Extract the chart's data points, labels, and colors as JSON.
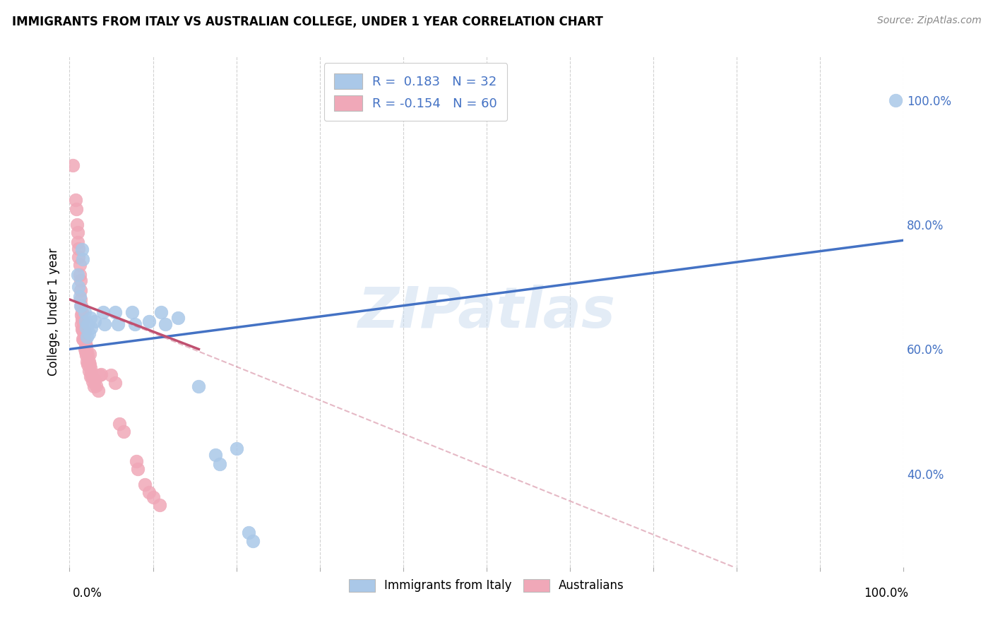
{
  "title": "IMMIGRANTS FROM ITALY VS AUSTRALIAN COLLEGE, UNDER 1 YEAR CORRELATION CHART",
  "source": "Source: ZipAtlas.com",
  "ylabel": "College, Under 1 year",
  "legend_label1": "Immigrants from Italy",
  "legend_label2": "Australians",
  "r1": 0.183,
  "n1": 32,
  "r2": -0.154,
  "n2": 60,
  "blue_color": "#aac8e8",
  "pink_color": "#f0a8b8",
  "line_blue_color": "#4472c4",
  "line_pink_color": "#c05070",
  "blue_scatter": [
    [
      0.01,
      0.72
    ],
    [
      0.011,
      0.7
    ],
    [
      0.012,
      0.685
    ],
    [
      0.013,
      0.67
    ],
    [
      0.015,
      0.76
    ],
    [
      0.016,
      0.745
    ],
    [
      0.018,
      0.66
    ],
    [
      0.019,
      0.645
    ],
    [
      0.02,
      0.635
    ],
    [
      0.021,
      0.62
    ],
    [
      0.022,
      0.64
    ],
    [
      0.023,
      0.625
    ],
    [
      0.025,
      0.65
    ],
    [
      0.026,
      0.635
    ],
    [
      0.03,
      0.645
    ],
    [
      0.04,
      0.66
    ],
    [
      0.042,
      0.64
    ],
    [
      0.055,
      0.66
    ],
    [
      0.058,
      0.64
    ],
    [
      0.075,
      0.66
    ],
    [
      0.078,
      0.64
    ],
    [
      0.095,
      0.645
    ],
    [
      0.11,
      0.66
    ],
    [
      0.115,
      0.64
    ],
    [
      0.13,
      0.65
    ],
    [
      0.155,
      0.54
    ],
    [
      0.175,
      0.43
    ],
    [
      0.18,
      0.415
    ],
    [
      0.2,
      0.44
    ],
    [
      0.215,
      0.305
    ],
    [
      0.22,
      0.292
    ],
    [
      0.99,
      1.0
    ]
  ],
  "pink_scatter": [
    [
      0.004,
      0.895
    ],
    [
      0.007,
      0.84
    ],
    [
      0.008,
      0.825
    ],
    [
      0.009,
      0.8
    ],
    [
      0.01,
      0.788
    ],
    [
      0.01,
      0.772
    ],
    [
      0.011,
      0.762
    ],
    [
      0.011,
      0.748
    ],
    [
      0.012,
      0.735
    ],
    [
      0.012,
      0.72
    ],
    [
      0.013,
      0.71
    ],
    [
      0.013,
      0.695
    ],
    [
      0.013,
      0.68
    ],
    [
      0.014,
      0.67
    ],
    [
      0.014,
      0.655
    ],
    [
      0.014,
      0.64
    ],
    [
      0.015,
      0.66
    ],
    [
      0.015,
      0.648
    ],
    [
      0.015,
      0.632
    ],
    [
      0.016,
      0.645
    ],
    [
      0.016,
      0.63
    ],
    [
      0.016,
      0.616
    ],
    [
      0.017,
      0.63
    ],
    [
      0.017,
      0.615
    ],
    [
      0.018,
      0.628
    ],
    [
      0.018,
      0.614
    ],
    [
      0.018,
      0.6
    ],
    [
      0.019,
      0.61
    ],
    [
      0.019,
      0.596
    ],
    [
      0.02,
      0.605
    ],
    [
      0.02,
      0.59
    ],
    [
      0.021,
      0.595
    ],
    [
      0.021,
      0.58
    ],
    [
      0.022,
      0.59
    ],
    [
      0.022,
      0.575
    ],
    [
      0.023,
      0.58
    ],
    [
      0.023,
      0.565
    ],
    [
      0.024,
      0.575
    ],
    [
      0.024,
      0.592
    ],
    [
      0.025,
      0.57
    ],
    [
      0.025,
      0.556
    ],
    [
      0.026,
      0.562
    ],
    [
      0.027,
      0.556
    ],
    [
      0.028,
      0.548
    ],
    [
      0.029,
      0.54
    ],
    [
      0.03,
      0.55
    ],
    [
      0.032,
      0.542
    ],
    [
      0.034,
      0.534
    ],
    [
      0.036,
      0.558
    ],
    [
      0.038,
      0.56
    ],
    [
      0.05,
      0.558
    ],
    [
      0.055,
      0.546
    ],
    [
      0.06,
      0.48
    ],
    [
      0.065,
      0.468
    ],
    [
      0.08,
      0.42
    ],
    [
      0.082,
      0.408
    ],
    [
      0.09,
      0.382
    ],
    [
      0.095,
      0.37
    ],
    [
      0.1,
      0.362
    ],
    [
      0.108,
      0.35
    ]
  ],
  "xlim": [
    0.0,
    1.0
  ],
  "ylim": [
    0.25,
    1.07
  ],
  "blue_line": [
    0.0,
    1.0,
    0.6,
    0.775
  ],
  "pink_solid_line": [
    0.0,
    0.155,
    0.68,
    0.6
  ],
  "pink_full_line": [
    0.0,
    1.0,
    0.68,
    0.14
  ],
  "ytick_vals": [
    0.4,
    0.6,
    0.8,
    1.0
  ],
  "ytick_labels": [
    "40.0%",
    "60.0%",
    "80.0%",
    "100.0%"
  ],
  "right_tick_color": "#4472c4",
  "watermark_text": "ZIPatlas",
  "watermark_color": "#ccddf0",
  "bg_color": "#ffffff",
  "title_fontsize": 12,
  "axis_label_fontsize": 12,
  "tick_fontsize": 12,
  "legend_fontsize": 13
}
